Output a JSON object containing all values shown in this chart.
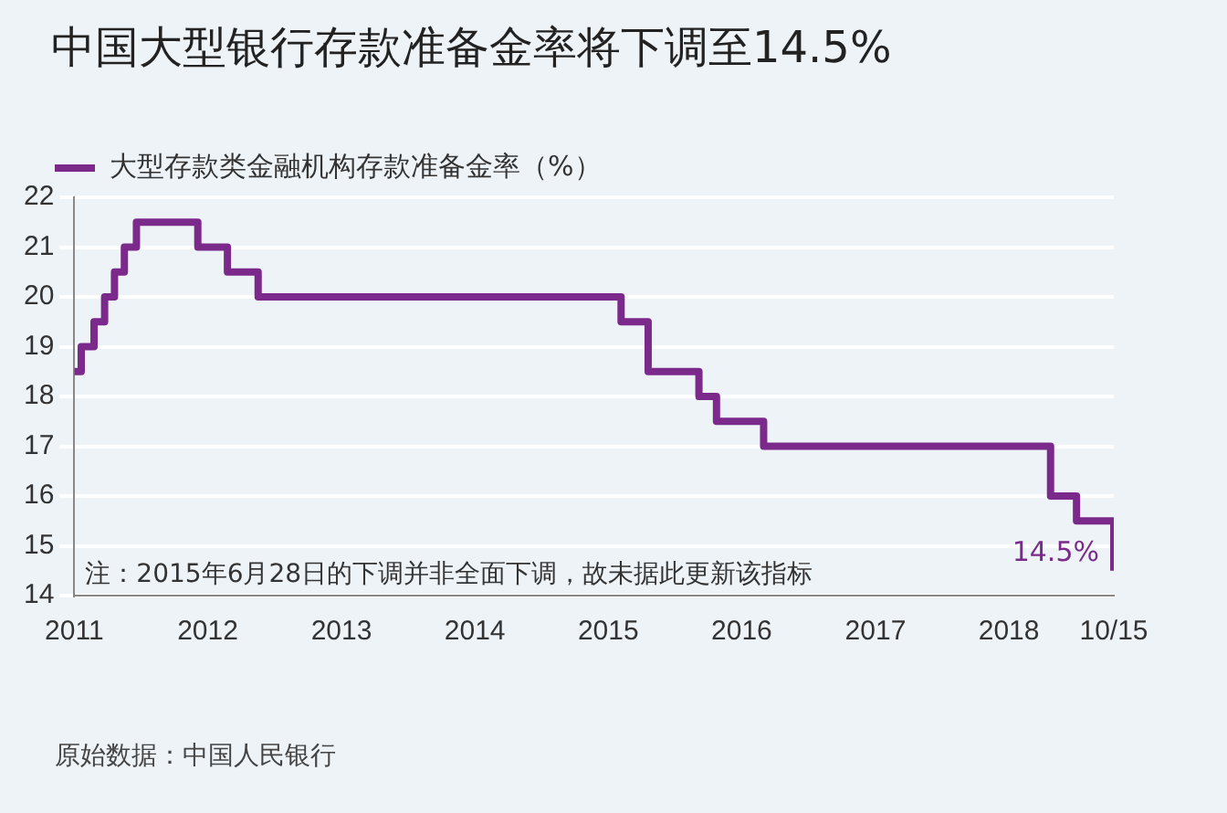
{
  "chart_data": {
    "type": "step",
    "title": "中国大型银行存款准备金率将下调至14.5%",
    "x": [
      "2011-01-01",
      "2011-01-20",
      "2011-02-24",
      "2011-03-25",
      "2011-04-21",
      "2011-05-18",
      "2011-06-20",
      "2011-12-05",
      "2012-02-24",
      "2012-05-18",
      "2015-02-05",
      "2015-04-20",
      "2015-09-06",
      "2015-10-24",
      "2016-03-01",
      "2018-04-25",
      "2018-07-05",
      "2018-10-15"
    ],
    "series": [
      {
        "name": "大型存款类金融机构存款准备金率（%）",
        "color": "#7b2a8c",
        "values": [
          18.5,
          19,
          19.5,
          20,
          20.5,
          21,
          21.5,
          21,
          20.5,
          20,
          19.5,
          18.5,
          18,
          17.5,
          17,
          16,
          15.5,
          14.5
        ],
        "value_labels": [
          null,
          null,
          null,
          null,
          null,
          null,
          null,
          null,
          null,
          null,
          null,
          null,
          null,
          null,
          null,
          null,
          null,
          "14.5%"
        ]
      }
    ],
    "xlim": [
      "2011-01-01",
      "2018-10-15"
    ],
    "xticks": [
      {
        "value": "2011-01-01",
        "label": "2011"
      },
      {
        "value": "2012-01-01",
        "label": "2012"
      },
      {
        "value": "2013-01-01",
        "label": "2013"
      },
      {
        "value": "2014-01-01",
        "label": "2014"
      },
      {
        "value": "2015-01-01",
        "label": "2015"
      },
      {
        "value": "2016-01-01",
        "label": "2016"
      },
      {
        "value": "2017-01-01",
        "label": "2017"
      },
      {
        "value": "2018-01-01",
        "label": "2018"
      },
      {
        "value": "2018-10-15",
        "label": "10/15"
      }
    ],
    "ylim": [
      14,
      22
    ],
    "yticks": [
      14,
      15,
      16,
      17,
      18,
      19,
      20,
      21,
      22
    ],
    "grid": "y",
    "legend": "top left",
    "marker": "none",
    "line_style": "solid",
    "annotations": [
      "注：2015年6月28日的下调并非全面下调，故未据此更新该指标",
      "原始数据：中国人民银行"
    ]
  }
}
